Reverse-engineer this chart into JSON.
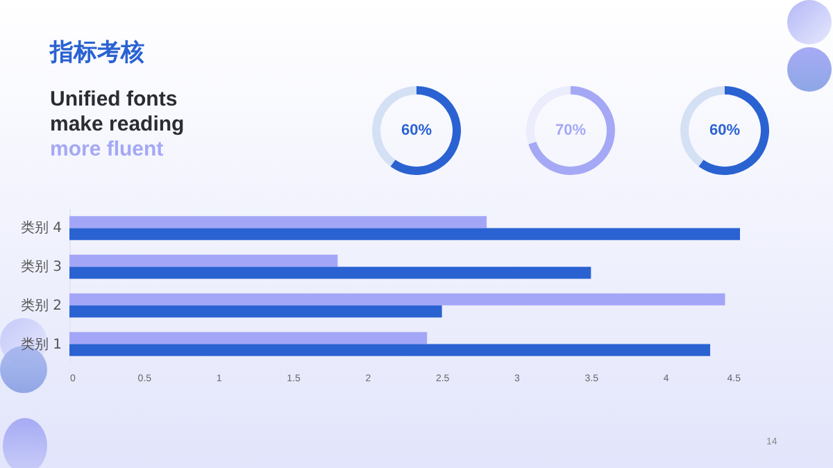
{
  "chart_data": [
    {
      "type": "other",
      "title": "指标考核",
      "annotations": [
        "Unified fonts",
        "make reading",
        "more fluent"
      ]
    },
    {
      "type": "donut",
      "categories": [
        null,
        null
      ],
      "values": [
        60,
        40
      ],
      "colors": [
        "#2a62d2",
        "#d4e0f4"
      ],
      "annotations": [
        "60%"
      ]
    },
    {
      "type": "donut",
      "categories": [
        null,
        null
      ],
      "values": [
        70,
        30
      ],
      "colors": [
        "#a5a8f5",
        "#ebecfc"
      ],
      "annotations": [
        "70%"
      ]
    },
    {
      "type": "donut",
      "categories": [
        null,
        null
      ],
      "values": [
        60,
        40
      ],
      "colors": [
        "#2a62d2",
        "#d4e0f4"
      ],
      "annotations": [
        "60%"
      ]
    },
    {
      "type": "bar",
      "orientation": "horizontal",
      "categories": [
        "类别 4",
        "类别 3",
        "类别 2",
        "类别 1"
      ],
      "series": [
        {
          "color": "#a3a6f7",
          "values": [
            2.8,
            1.8,
            4.4,
            2.4
          ]
        },
        {
          "color": "#2a62d2",
          "values": [
            4.5,
            3.5,
            2.5,
            4.3
          ]
        }
      ],
      "xlim": [
        0,
        4.5
      ],
      "xticks": [
        0,
        0.5,
        1,
        1.5,
        2,
        2.5,
        3,
        3.5,
        4,
        4.5
      ],
      "annotations": [
        "14"
      ]
    }
  ]
}
